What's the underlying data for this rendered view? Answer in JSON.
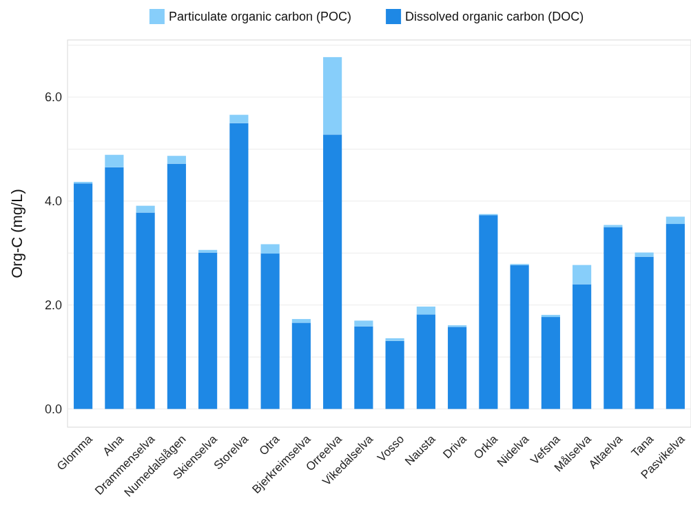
{
  "chart_data": {
    "type": "bar",
    "stacked": true,
    "ylabel": "Org-C (mg/L)",
    "legend": "top",
    "grid": "y",
    "categories": [
      "Glomma",
      "Alna",
      "Drammenselva",
      "Numedalslågen",
      "Skienselva",
      "Storelva",
      "Otra",
      "Bjerkreimselva",
      "Orreelva",
      "Vikedalselva",
      "Vosso",
      "Nausta",
      "Driva",
      "Orkla",
      "Nidelva",
      "Vefsna",
      "Målselva",
      "Altaelva",
      "Tana",
      "Pasvikelva"
    ],
    "series": [
      {
        "name": "Dissolved organic carbon (DOC)",
        "color": "#1e88e5",
        "values": [
          4.34,
          4.65,
          3.78,
          4.72,
          3.01,
          5.5,
          2.99,
          1.66,
          5.28,
          1.59,
          1.31,
          1.82,
          1.58,
          3.73,
          2.77,
          1.77,
          2.4,
          3.5,
          2.93,
          3.56
        ]
      },
      {
        "name": "Particulate organic carbon (POC)",
        "color": "#87cefa",
        "values": [
          0.03,
          0.24,
          0.13,
          0.15,
          0.05,
          0.16,
          0.18,
          0.07,
          1.49,
          0.11,
          0.05,
          0.15,
          0.03,
          0.02,
          0.02,
          0.04,
          0.37,
          0.04,
          0.08,
          0.14
        ]
      }
    ],
    "ylim": [
      -0.35,
      7.1
    ],
    "yticks": [
      {
        "value": 0,
        "label": "0.0"
      },
      {
        "value": 1,
        "label": null
      },
      {
        "value": 2,
        "label": "2.0"
      },
      {
        "value": 3,
        "label": null
      },
      {
        "value": 4,
        "label": "4.0"
      },
      {
        "value": 5,
        "label": null
      },
      {
        "value": 6,
        "label": "6.0"
      },
      {
        "value": 7,
        "label": null
      }
    ]
  }
}
